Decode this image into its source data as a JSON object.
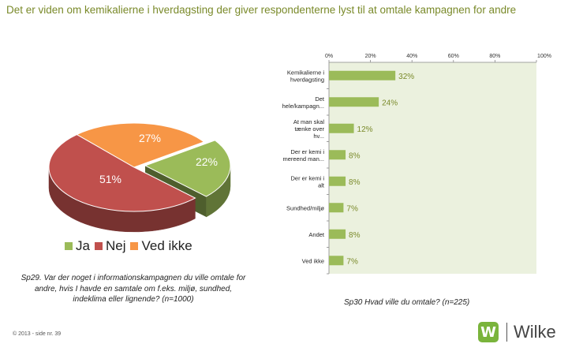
{
  "title": "Det er viden om kemikalierne i hverdagsting der giver respondenterne lyst til at omtale kampagnen for andre",
  "pie": {
    "type": "pie",
    "series": [
      {
        "name": "Ja",
        "value": 22,
        "label": "22%",
        "color": "#9bbb59"
      },
      {
        "name": "Nej",
        "value": 51,
        "label": "51%",
        "color": "#c0504d"
      },
      {
        "name": "Ved ikke",
        "value": 27,
        "label": "27%",
        "color": "#f79646"
      }
    ],
    "caption": "Sp29. Var der noget i informationskampagnen du ville omtale for andre, hvis I havde en samtale om f.eks. miljø, sundhed, indeklima eller lignende? (n=1000)"
  },
  "chart_data": {
    "type": "bar",
    "orientation": "horizontal",
    "categories": [
      "Kemikalierne i hverdagsting",
      "Det hele/kampagn...",
      "At man skal tænke over hv...",
      "Der er kemi i mereend man...",
      "Der er kemi i alt",
      "Sundhed/miljø",
      "Andet",
      "Ved ikke"
    ],
    "values": [
      32,
      24,
      12,
      8,
      8,
      7,
      8,
      7
    ],
    "labels": [
      "32%",
      "24%",
      "12%",
      "8%",
      "8%",
      "7%",
      "8%",
      "7%"
    ],
    "xlim": [
      0,
      100
    ],
    "xticks": [
      "0%",
      "20%",
      "40%",
      "60%",
      "80%",
      "100%"
    ],
    "bar_color": "#9bbb59",
    "plot_background": "#ebf1de",
    "caption": "Sp30 Hvad ville du omtale? (n=225)"
  },
  "footer": "© 2013 - side nr. 39",
  "logo": {
    "mark": "W",
    "text": "Wilke"
  }
}
